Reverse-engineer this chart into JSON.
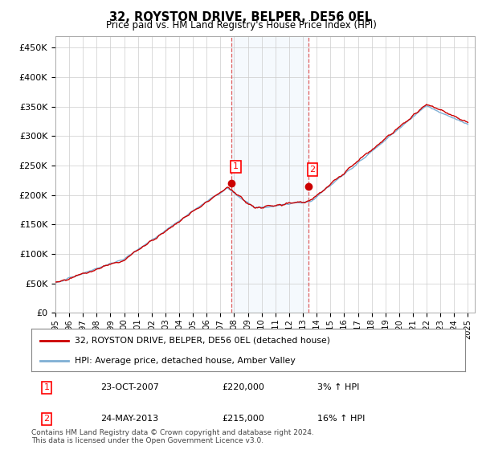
{
  "title": "32, ROYSTON DRIVE, BELPER, DE56 0EL",
  "subtitle": "Price paid vs. HM Land Registry's House Price Index (HPI)",
  "ylabel_ticks": [
    "£0",
    "£50K",
    "£100K",
    "£150K",
    "£200K",
    "£250K",
    "£300K",
    "£350K",
    "£400K",
    "£450K"
  ],
  "ytick_values": [
    0,
    50000,
    100000,
    150000,
    200000,
    250000,
    300000,
    350000,
    400000,
    450000
  ],
  "ylim": [
    0,
    470000
  ],
  "xlim_start": 1995.0,
  "xlim_end": 2025.5,
  "hpi_color": "#7fafd4",
  "price_color": "#cc0000",
  "marker1_x": 2007.81,
  "marker1_y": 220000,
  "marker2_x": 2013.39,
  "marker2_y": 215000,
  "vline1_x": 2007.81,
  "vline2_x": 2013.39,
  "shade_xmin": 2007.81,
  "shade_xmax": 2013.39,
  "legend_line1": "32, ROYSTON DRIVE, BELPER, DE56 0EL (detached house)",
  "legend_line2": "HPI: Average price, detached house, Amber Valley",
  "table_rows": [
    [
      "1",
      "23-OCT-2007",
      "£220,000",
      "3% ↑ HPI"
    ],
    [
      "2",
      "24-MAY-2013",
      "£215,000",
      "16% ↑ HPI"
    ]
  ],
  "footer": "Contains HM Land Registry data © Crown copyright and database right 2024.\nThis data is licensed under the Open Government Licence v3.0.",
  "background_color": "#ffffff",
  "plot_bg_color": "#ffffff",
  "grid_color": "#cccccc"
}
